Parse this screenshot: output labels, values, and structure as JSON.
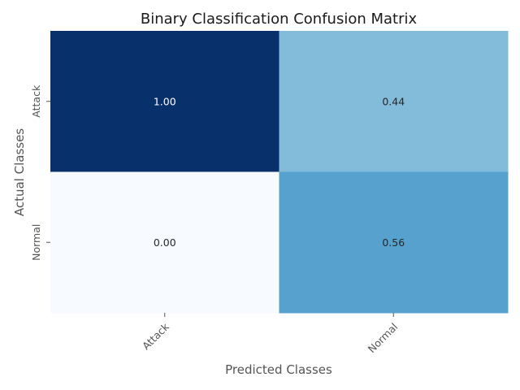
{
  "chart_data": {
    "type": "heatmap",
    "title": "Binary Classification Confusion Matrix",
    "xlabel": "Predicted Classes",
    "ylabel": "Actual Classes",
    "x_categories": [
      "Attack",
      "Normal"
    ],
    "y_categories": [
      "Attack",
      "Normal"
    ],
    "values": [
      [
        1.0,
        0.44
      ],
      [
        0.0,
        0.56
      ]
    ],
    "value_labels": [
      [
        "1.00",
        "0.44"
      ],
      [
        "0.00",
        "0.56"
      ]
    ],
    "colormap": "Blues",
    "vmin": 0,
    "vmax": 1,
    "colorbar": false,
    "grid": false
  }
}
